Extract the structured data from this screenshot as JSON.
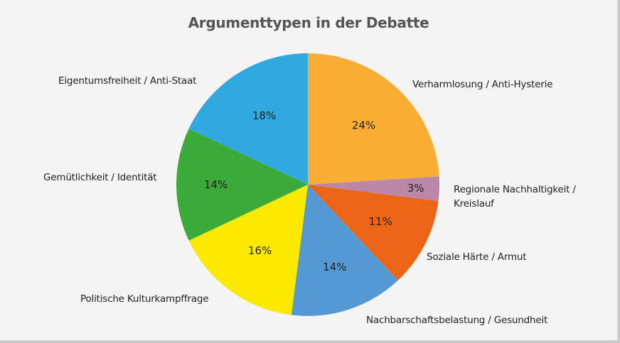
{
  "chart_data": {
    "type": "pie",
    "title": "Argumenttypen in der Debatte",
    "start_angle": "12 o'clock, clockwise",
    "categories": [
      "Verharmlosung / Anti-Hysterie",
      "Regionale Nachhaltigkeit / Kreislauf",
      "Soziale Härte / Armut",
      "Nachbarschaftsbelastung / Gesundheit",
      "Politische Kulturkampffrage",
      "Gemütlichkeit / Identität",
      "Eigentumsfreiheit / Anti-Staat"
    ],
    "values": [
      24,
      3,
      11,
      14,
      16,
      14,
      18
    ],
    "value_labels": [
      "24%",
      "3%",
      "11%",
      "14%",
      "16%",
      "14%",
      "18%"
    ],
    "colors": [
      "#f9ae33",
      "#b987a8",
      "#ec6416",
      "#5599d4",
      "#fbe900",
      "#3aab39",
      "#30a8e0"
    ],
    "unit": "%",
    "legend": "none (direct labels)"
  },
  "labels": {
    "title": "Argumenttypen in der Debatte",
    "verharmlosung": "Verharmlosung / Anti-Hysterie",
    "regional_1": "Regionale Nachhaltigkeit /",
    "regional_2": "Kreislauf",
    "sozial": "Soziale Härte / Armut",
    "nachbar": "Nachbarschaftsbelastung / Gesundheit",
    "politisch": "Politische Kulturkampffrage",
    "gemuet": "Gemütlichkeit / Identität",
    "eigentum": "Eigentumsfreiheit / Anti-Staat"
  }
}
